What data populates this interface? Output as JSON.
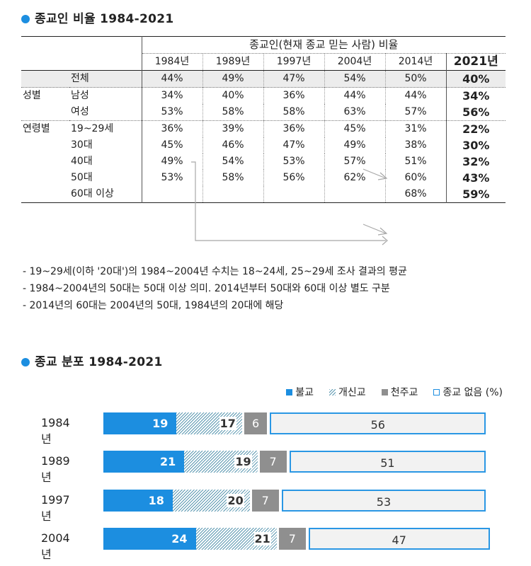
{
  "section1": {
    "title": "종교인 비율 1984-2021"
  },
  "table": {
    "group_header": "종교인(현재 종교 믿는 사람) 비율",
    "years": [
      "1984년",
      "1989년",
      "1997년",
      "2004년",
      "2014년",
      "2021년"
    ],
    "rows": [
      {
        "group": "",
        "label": "전체",
        "values": [
          "44%",
          "49%",
          "47%",
          "54%",
          "50%",
          "40%"
        ]
      },
      {
        "group": "성별",
        "label": "남성",
        "values": [
          "34%",
          "40%",
          "36%",
          "44%",
          "44%",
          "34%"
        ]
      },
      {
        "group": "",
        "label": "여성",
        "values": [
          "53%",
          "58%",
          "58%",
          "63%",
          "57%",
          "56%"
        ]
      },
      {
        "group": "연령별",
        "label": "19~29세",
        "values": [
          "36%",
          "39%",
          "36%",
          "45%",
          "31%",
          "22%"
        ]
      },
      {
        "group": "",
        "label": "30대",
        "values": [
          "45%",
          "46%",
          "47%",
          "49%",
          "38%",
          "30%"
        ]
      },
      {
        "group": "",
        "label": "40대",
        "values": [
          "49%",
          "54%",
          "53%",
          "57%",
          "51%",
          "32%"
        ]
      },
      {
        "group": "",
        "label": "50대",
        "values": [
          "53%",
          "58%",
          "56%",
          "62%",
          "60%",
          "43%"
        ]
      },
      {
        "group": "",
        "label": "60대 이상",
        "values": [
          "",
          "",
          "",
          "",
          "68%",
          "59%"
        ]
      }
    ]
  },
  "notes": [
    "- 19~29세(이하 '20대')의 1984~2004년 수치는 18~24세, 25~29세 조사 결과의 평균",
    "- 1984~2004년의 50대는 50대 이상 의미. 2014년부터 50대와 60대 이상 별도 구분",
    "- 2014년의 60대는 2004년의 50대, 1984년의 20대에 해당"
  ],
  "section2": {
    "title": "종교 분포 1984-2021"
  },
  "legend": {
    "buddhism": "불교",
    "protestant": "개신교",
    "catholic": "천주교",
    "none": "종교 없음",
    "unit": "(%)"
  },
  "colors": {
    "accent": "#1c8ee0",
    "catholic": "#8f8f8f",
    "none_fill": "#f2f2f2",
    "stripe": "#5a97b0"
  },
  "chart_data": {
    "type": "bar",
    "stacked": true,
    "orientation": "horizontal",
    "title": "종교 분포 1984-2021",
    "categories": [
      "1984년",
      "1989년",
      "1997년",
      "2004년"
    ],
    "series": [
      {
        "name": "불교",
        "values": [
          19,
          21,
          18,
          24
        ]
      },
      {
        "name": "개신교",
        "values": [
          17,
          19,
          20,
          21
        ]
      },
      {
        "name": "천주교",
        "values": [
          6,
          7,
          7,
          7
        ]
      },
      {
        "name": "종교 없음",
        "values": [
          56,
          51,
          53,
          47
        ]
      }
    ],
    "unit": "%"
  }
}
